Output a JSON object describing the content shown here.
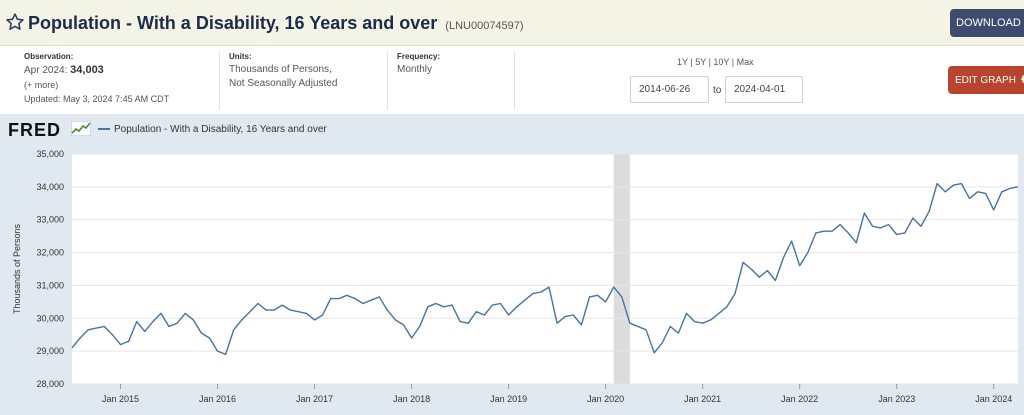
{
  "header": {
    "title": "Population - With a Disability, 16 Years and over",
    "series_id": "(LNU00074597)",
    "download_label": "DOWNLOAD"
  },
  "observation": {
    "label": "Observation:",
    "date": "Apr 2024:",
    "value": "34,003",
    "more": "(+ more)",
    "updated": "Updated: May 3, 2024 7:45 AM CDT"
  },
  "units": {
    "label": "Units:",
    "line1": "Thousands of Persons,",
    "line2": "Not Seasonally Adjusted"
  },
  "frequency": {
    "label": "Frequency:",
    "value": "Monthly"
  },
  "range": {
    "options": [
      "1Y",
      "5Y",
      "10Y",
      "Max"
    ],
    "start": "2014-06-26",
    "to_label": "to",
    "end": "2024-04-01"
  },
  "edit_label": "EDIT GRAPH",
  "colors": {
    "series": "#4572a7",
    "recession": "#dcdcdc",
    "download": "#3e4b6e",
    "edit": "#b8442e"
  },
  "chart_data": {
    "type": "line",
    "logo": "FRED",
    "legend": "Population - With a Disability, 16 Years and over",
    "ylabel": "Thousands of Persons",
    "ylim": [
      28000,
      35000
    ],
    "yticks": [
      "35,000",
      "34,000",
      "33,000",
      "32,000",
      "31,000",
      "30,000",
      "29,000",
      "28,000"
    ],
    "ytick_values": [
      35000,
      34000,
      33000,
      32000,
      31000,
      30000,
      29000,
      28000
    ],
    "xlim": [
      "2014-07",
      "2024-04"
    ],
    "xticks": [
      "Jan 2015",
      "Jan 2016",
      "Jan 2017",
      "Jan 2018",
      "Jan 2019",
      "Jan 2020",
      "Jan 2021",
      "Jan 2022",
      "Jan 2023",
      "Jan 2024"
    ],
    "xtick_dates": [
      "2015-01",
      "2016-01",
      "2017-01",
      "2018-01",
      "2019-01",
      "2020-01",
      "2021-01",
      "2022-01",
      "2023-01",
      "2024-01"
    ],
    "recession": [
      "2020-02",
      "2020-04"
    ],
    "grid": true,
    "series": [
      {
        "x": [
          "2014-07",
          "2014-08",
          "2014-09",
          "2014-10",
          "2014-11",
          "2014-12",
          "2015-01",
          "2015-02",
          "2015-03",
          "2015-04",
          "2015-05",
          "2015-06",
          "2015-07",
          "2015-08",
          "2015-09",
          "2015-10",
          "2015-11",
          "2015-12",
          "2016-01",
          "2016-02",
          "2016-03",
          "2016-04",
          "2016-05",
          "2016-06",
          "2016-07",
          "2016-08",
          "2016-09",
          "2016-10",
          "2016-11",
          "2016-12",
          "2017-01",
          "2017-02",
          "2017-03",
          "2017-04",
          "2017-05",
          "2017-06",
          "2017-07",
          "2017-08",
          "2017-09",
          "2017-10",
          "2017-11",
          "2017-12",
          "2018-01",
          "2018-02",
          "2018-03",
          "2018-04",
          "2018-05",
          "2018-06",
          "2018-07",
          "2018-08",
          "2018-09",
          "2018-10",
          "2018-11",
          "2018-12",
          "2019-01",
          "2019-02",
          "2019-03",
          "2019-04",
          "2019-05",
          "2019-06",
          "2019-07",
          "2019-08",
          "2019-09",
          "2019-10",
          "2019-11",
          "2019-12",
          "2020-01",
          "2020-02",
          "2020-03",
          "2020-04",
          "2020-05",
          "2020-06",
          "2020-07",
          "2020-08",
          "2020-09",
          "2020-10",
          "2020-11",
          "2020-12",
          "2021-01",
          "2021-02",
          "2021-03",
          "2021-04",
          "2021-05",
          "2021-06",
          "2021-07",
          "2021-08",
          "2021-09",
          "2021-10",
          "2021-11",
          "2021-12",
          "2022-01",
          "2022-02",
          "2022-03",
          "2022-04",
          "2022-05",
          "2022-06",
          "2022-07",
          "2022-08",
          "2022-09",
          "2022-10",
          "2022-11",
          "2022-12",
          "2023-01",
          "2023-02",
          "2023-03",
          "2023-04",
          "2023-05",
          "2023-06",
          "2023-07",
          "2023-08",
          "2023-09",
          "2023-10",
          "2023-11",
          "2023-12",
          "2024-01",
          "2024-02",
          "2024-03",
          "2024-04"
        ],
        "values": [
          29100,
          29400,
          29650,
          29700,
          29750,
          29500,
          29200,
          29300,
          29900,
          29600,
          29900,
          30150,
          29750,
          29850,
          30150,
          29950,
          29550,
          29400,
          29000,
          28900,
          29650,
          29950,
          30200,
          30450,
          30250,
          30250,
          30400,
          30250,
          30200,
          30150,
          29950,
          30100,
          30600,
          30600,
          30700,
          30600,
          30450,
          30550,
          30650,
          30250,
          29950,
          29800,
          29400,
          29750,
          30350,
          30450,
          30350,
          30400,
          29900,
          29850,
          30200,
          30100,
          30400,
          30450,
          30100,
          30350,
          30550,
          30750,
          30800,
          30950,
          29850,
          30050,
          30100,
          29800,
          30650,
          30700,
          30500,
          30950,
          30650,
          29850,
          29750,
          29650,
          28950,
          29250,
          29750,
          29550,
          30150,
          29900,
          29850,
          29950,
          30150,
          30350,
          30750,
          31700,
          31500,
          31250,
          31450,
          31150,
          31850,
          32350,
          31600,
          32000,
          32600,
          32650,
          32650,
          32850,
          32600,
          32300,
          33200,
          32800,
          32750,
          32850,
          32550,
          32600,
          33050,
          32800,
          33250,
          34100,
          33850,
          34050,
          34100,
          33650,
          33850,
          33800,
          33300,
          33850,
          33950,
          34003
        ]
      }
    ]
  }
}
